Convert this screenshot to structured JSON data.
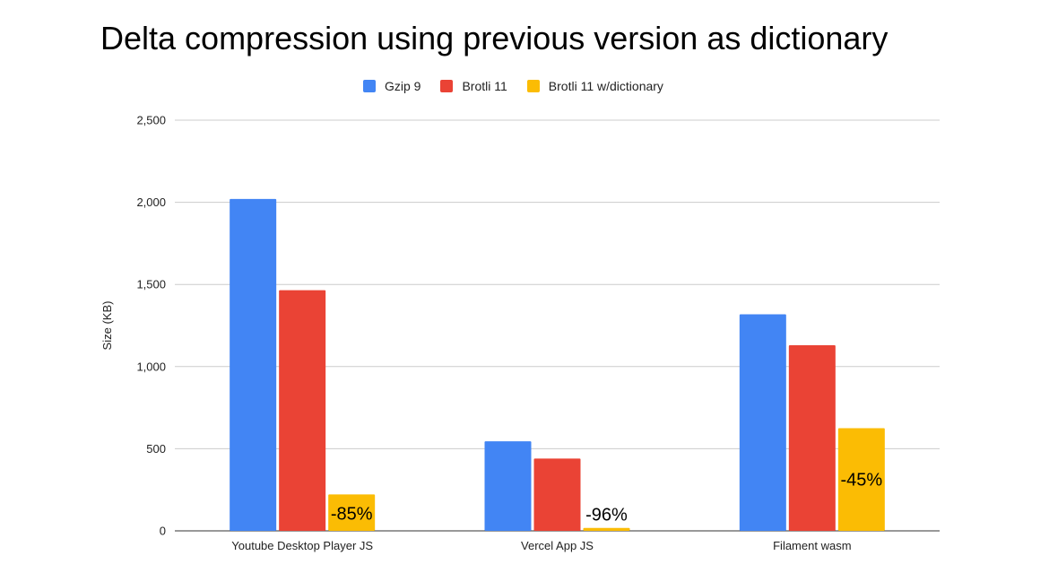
{
  "chart_data": {
    "type": "bar",
    "title": "Delta compression using previous version as dictionary",
    "ylabel": "Size (KB)",
    "xlabel": "",
    "ylim": [
      0,
      2500
    ],
    "yticks": [
      0,
      500,
      1000,
      1500,
      2000,
      2500
    ],
    "ytick_labels": [
      "0",
      "500",
      "1,000",
      "1,500",
      "2,000",
      "2,500"
    ],
    "grid": true,
    "legend_position": "top",
    "categories": [
      "Youtube Desktop Player JS",
      "Vercel App JS",
      "Filament wasm"
    ],
    "series": [
      {
        "name": "Gzip 9",
        "color": "#4285f4",
        "values": [
          2020,
          545,
          1318
        ]
      },
      {
        "name": "Brotli 11",
        "color": "#ea4335",
        "values": [
          1465,
          440,
          1130
        ]
      },
      {
        "name": "Brotli 11 w/dictionary",
        "color": "#fbbc04",
        "values": [
          222,
          18,
          625
        ]
      }
    ],
    "annotations": [
      {
        "series": 2,
        "category": 0,
        "text": "-85%"
      },
      {
        "series": 2,
        "category": 1,
        "text": "-96%"
      },
      {
        "series": 2,
        "category": 2,
        "text": "-45%"
      }
    ]
  }
}
